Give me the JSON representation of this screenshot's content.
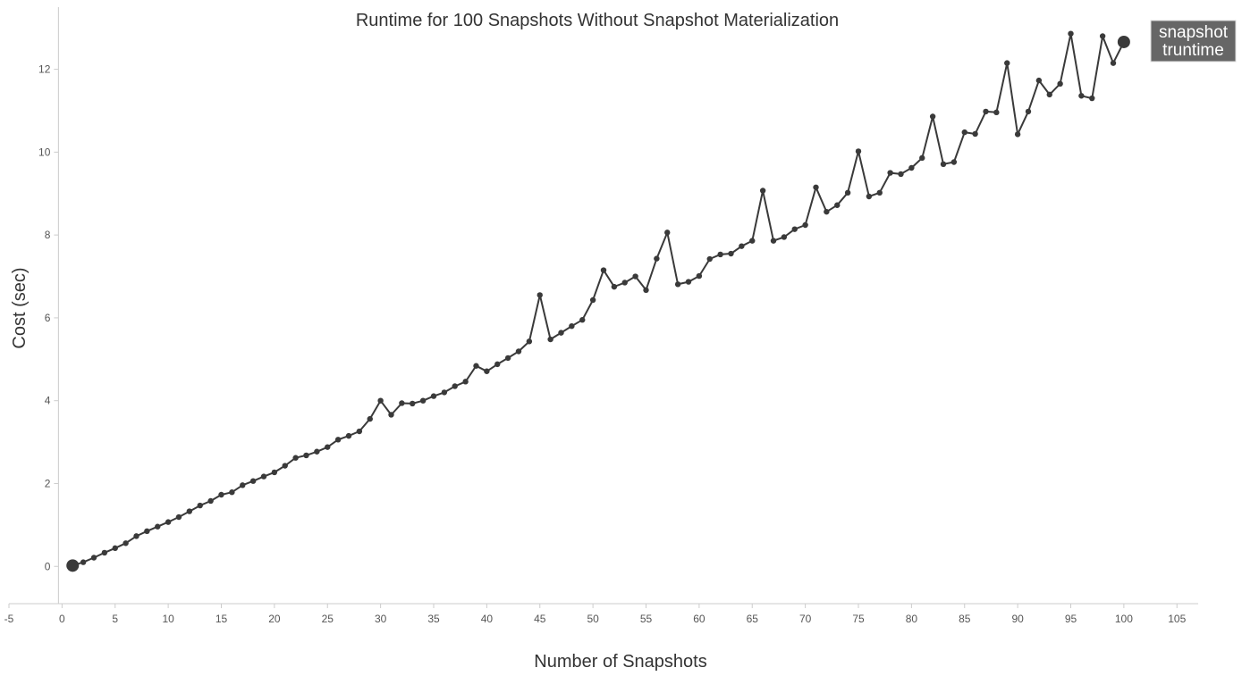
{
  "chart_data": {
    "type": "line",
    "title": "Runtime for 100 Snapshots Without Snapshot Materialization",
    "xlabel": "Number of Snapshots",
    "ylabel": "Cost (sec)",
    "xlim": [
      -5,
      107
    ],
    "ylim": [
      -0.9,
      13.5
    ],
    "x_ticks": [
      -5,
      0,
      5,
      10,
      15,
      20,
      25,
      30,
      35,
      40,
      45,
      50,
      55,
      60,
      65,
      70,
      75,
      80,
      85,
      90,
      95,
      100,
      105
    ],
    "y_ticks": [
      0,
      2,
      4,
      6,
      8,
      10,
      12
    ],
    "grid": false,
    "line_color": "#3a3a3a",
    "end_label_lines": [
      "snapshot",
      "truntime"
    ],
    "end_label_color": "#666666",
    "series": [
      {
        "x": [
          1,
          2,
          3,
          4,
          5,
          6,
          7,
          8,
          9,
          10,
          11,
          12,
          13,
          14,
          15,
          16,
          17,
          18,
          19,
          20,
          21,
          22,
          23,
          24,
          25,
          26,
          27,
          28,
          29,
          30,
          31,
          32,
          33,
          34,
          35,
          36,
          37,
          38,
          39,
          40,
          41,
          42,
          43,
          44,
          45,
          46,
          47,
          48,
          49,
          50,
          51,
          52,
          53,
          54,
          55,
          56,
          57,
          58,
          59,
          60,
          61,
          62,
          63,
          64,
          65,
          66,
          67,
          68,
          69,
          70,
          71,
          72,
          73,
          74,
          75,
          76,
          77,
          78,
          79,
          80,
          81,
          82,
          83,
          84,
          85,
          86,
          87,
          88,
          89,
          90,
          91,
          92,
          93,
          94,
          95,
          96,
          97,
          98,
          99,
          100
        ],
        "values": [
          0.02,
          0.1,
          0.21,
          0.33,
          0.44,
          0.56,
          0.73,
          0.85,
          0.96,
          1.07,
          1.19,
          1.33,
          1.47,
          1.58,
          1.73,
          1.79,
          1.96,
          2.06,
          2.17,
          2.27,
          2.43,
          2.62,
          2.68,
          2.77,
          2.88,
          3.06,
          3.15,
          3.26,
          3.56,
          4.0,
          3.66,
          3.94,
          3.93,
          4.0,
          4.11,
          4.2,
          4.35,
          4.46,
          4.84,
          4.71,
          4.88,
          5.03,
          5.19,
          5.43,
          6.55,
          5.48,
          5.64,
          5.8,
          5.95,
          6.43,
          7.15,
          6.75,
          6.85,
          7.0,
          6.67,
          7.43,
          8.06,
          6.81,
          6.87,
          7.01,
          7.42,
          7.53,
          7.55,
          7.73,
          7.86,
          9.07,
          7.86,
          7.95,
          8.14,
          8.24,
          9.15,
          8.56,
          8.72,
          9.02,
          10.02,
          8.93,
          9.02,
          9.5,
          9.47,
          9.62,
          9.86,
          10.86,
          9.71,
          9.76,
          10.48,
          10.44,
          10.98,
          10.96,
          12.15,
          10.43,
          10.98,
          11.73,
          11.39,
          11.65,
          12.86,
          11.36,
          11.3,
          12.8,
          12.15,
          12.66
        ]
      }
    ]
  }
}
